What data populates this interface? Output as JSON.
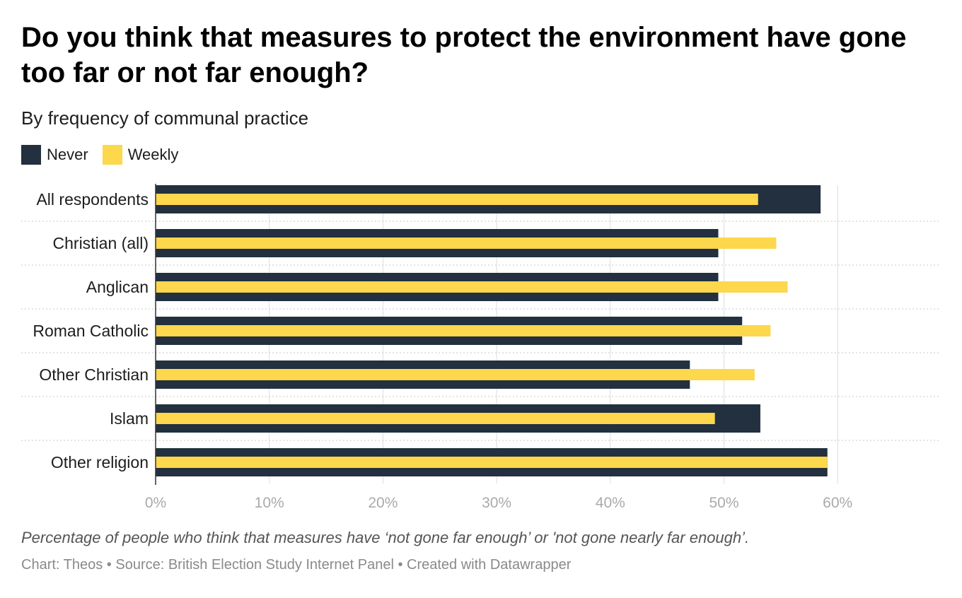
{
  "header": {
    "title": "Do you think that measures to protect the environment have gone too far or not far enough?",
    "subtitle": "By frequency of communal practice"
  },
  "colors": {
    "never": "#22303f",
    "weekly": "#fdd74c",
    "grid": "#dddddd",
    "tick": "#aaaaaa"
  },
  "chart_data": {
    "type": "bar",
    "orientation": "horizontal",
    "categories": [
      "All respondents",
      "Christian (all)",
      "Anglican",
      "Roman Catholic",
      "Other Christian",
      "Islam",
      "Other religion"
    ],
    "series": [
      {
        "name": "Never",
        "values": [
          58.5,
          49.5,
          49.5,
          51.6,
          47.0,
          53.2,
          59.1
        ]
      },
      {
        "name": "Weekly",
        "values": [
          53.0,
          54.6,
          55.6,
          54.1,
          52.7,
          49.2,
          59.1
        ]
      }
    ],
    "xlim": [
      0,
      60
    ],
    "x_ticks": [
      "0%",
      "10%",
      "20%",
      "30%",
      "40%",
      "50%",
      "60%"
    ],
    "grid": true,
    "legend_position": "top-left"
  },
  "footer": {
    "notes": "Percentage of people who think that measures have ‘not gone far enough’ or 'not gone nearly far enough’.",
    "byline": "Chart: Theos • Source: British Election Study Internet Panel • Created with Datawrapper"
  }
}
